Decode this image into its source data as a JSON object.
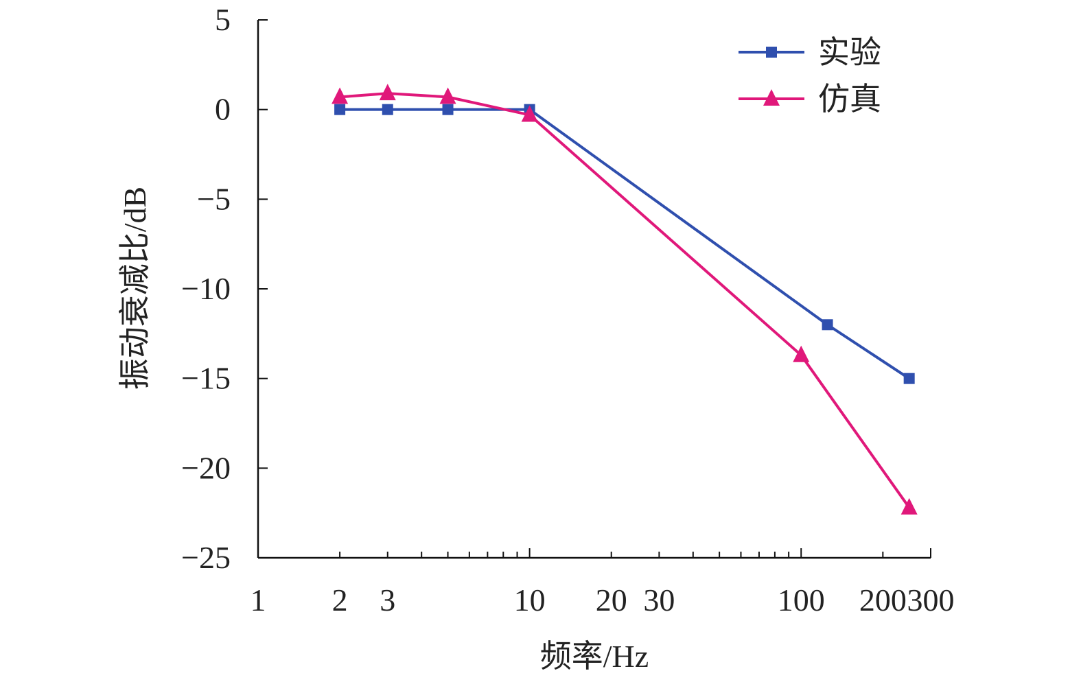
{
  "chart_data": {
    "type": "line",
    "title": "",
    "xlabel": "频率/Hz",
    "ylabel": "振动衰减比/dB",
    "x_scale": "log",
    "xlim": [
      1,
      300
    ],
    "ylim": [
      -25,
      5
    ],
    "x_ticks": [
      1,
      2,
      3,
      10,
      20,
      30,
      100,
      200,
      300
    ],
    "x_tick_labels": [
      "1",
      "2",
      "3",
      "10",
      "20",
      "30",
      "100",
      "200",
      "300"
    ],
    "y_ticks": [
      5,
      0,
      -5,
      -10,
      -15,
      -20,
      -25
    ],
    "y_tick_labels": [
      "5",
      "0",
      "−5",
      "−10",
      "−15",
      "−20",
      "−25"
    ],
    "grid": false,
    "legend_position": "top-right",
    "series": [
      {
        "name": "实验",
        "color": "#2f4fae",
        "marker": "square",
        "x": [
          2,
          3,
          5,
          10,
          125,
          250
        ],
        "y": [
          0,
          0,
          0,
          0,
          -12,
          -15
        ]
      },
      {
        "name": "仿真",
        "color": "#e0187a",
        "marker": "triangle",
        "x": [
          2,
          3,
          5,
          10,
          100,
          250
        ],
        "y": [
          0.7,
          0.9,
          0.7,
          -0.3,
          -13.7,
          -22.2
        ]
      }
    ]
  }
}
